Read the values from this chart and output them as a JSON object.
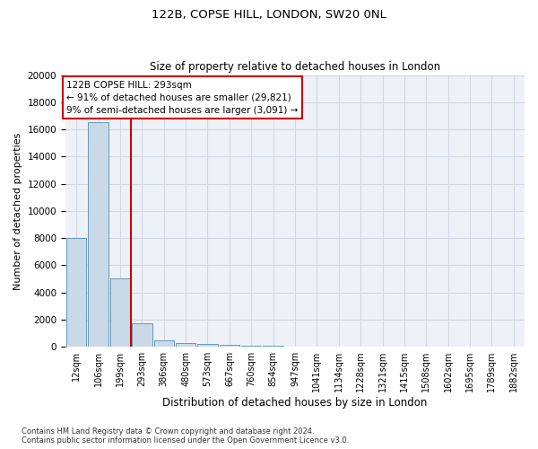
{
  "title1": "122B, COPSE HILL, LONDON, SW20 0NL",
  "title2": "Size of property relative to detached houses in London",
  "xlabel": "Distribution of detached houses by size in London",
  "ylabel": "Number of detached properties",
  "footer1": "Contains HM Land Registry data © Crown copyright and database right 2024.",
  "footer2": "Contains public sector information licensed under the Open Government Licence v3.0.",
  "annotation_line1": "122B COPSE HILL: 293sqm",
  "annotation_line2": "← 91% of detached houses are smaller (29,821)",
  "annotation_line3": "9% of semi-detached houses are larger (3,091) →",
  "vline_x": 2.5,
  "bar_color": "#c9d9e8",
  "bar_edge_color": "#6699bb",
  "vline_color": "#cc0000",
  "annotation_box_edgecolor": "#cc0000",
  "categories": [
    "12sqm",
    "106sqm",
    "199sqm",
    "293sqm",
    "386sqm",
    "480sqm",
    "573sqm",
    "667sqm",
    "760sqm",
    "854sqm",
    "947sqm",
    "1041sqm",
    "1134sqm",
    "1228sqm",
    "1321sqm",
    "1415sqm",
    "1508sqm",
    "1602sqm",
    "1695sqm",
    "1789sqm",
    "1882sqm"
  ],
  "values": [
    8000,
    16500,
    5000,
    1700,
    480,
    300,
    185,
    150,
    100,
    65,
    35,
    10,
    5,
    3,
    2,
    1,
    1,
    0,
    0,
    0,
    0
  ],
  "ylim": [
    0,
    20000
  ],
  "yticks": [
    0,
    2000,
    4000,
    6000,
    8000,
    10000,
    12000,
    14000,
    16000,
    18000,
    20000
  ],
  "grid_color": "#d0d8e4",
  "bg_color": "#eef2f8"
}
